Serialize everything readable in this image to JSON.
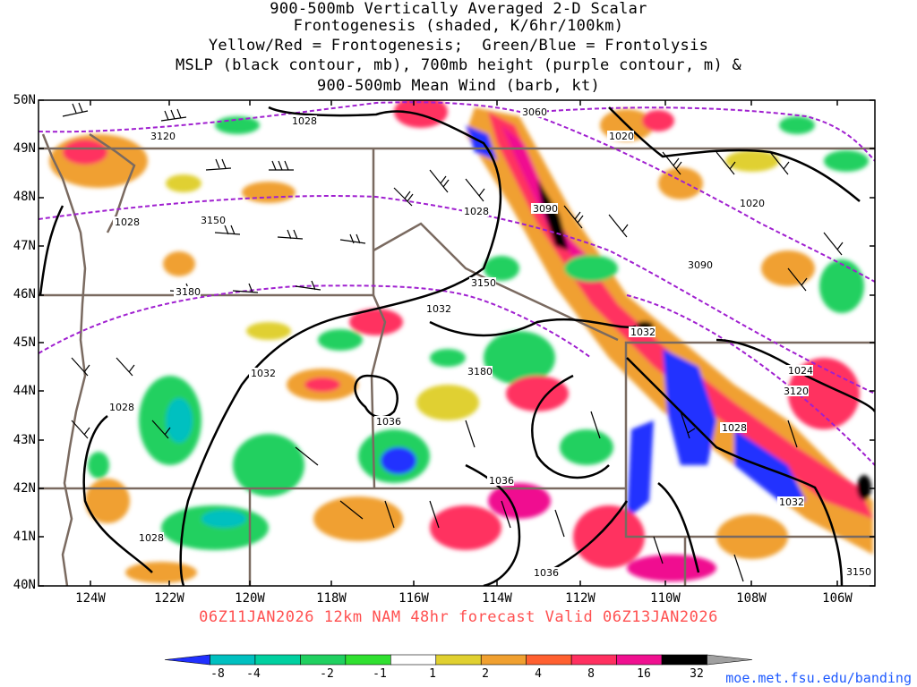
{
  "title_lines": [
    "900-500mb Vertically Averaged 2-D Scalar",
    "Frontogenesis (shaded, K/6hr/100km)",
    "Yellow/Red = Frontogenesis;  Green/Blue = Frontolysis",
    "MSLP (black contour, mb), 700mb height (purple contour, m) &",
    "900-500mb Mean Wind (barb, kt)"
  ],
  "latitudes": [
    "50N",
    "49N",
    "48N",
    "47N",
    "46N",
    "45N",
    "44N",
    "43N",
    "42N",
    "41N",
    "40N"
  ],
  "longitudes": [
    "124W",
    "122W",
    "120W",
    "118W",
    "116W",
    "114W",
    "112W",
    "110W",
    "108W",
    "106W"
  ],
  "subtitle": "06Z11JAN2026 12km NAM 48hr forecast Valid 06Z13JAN2026",
  "colorbar": {
    "labels": [
      "-8",
      "-4",
      "-2",
      "-1",
      "1",
      "2",
      "4",
      "8",
      "16",
      "32"
    ],
    "colors": [
      "#2030ff",
      "#00c0c0",
      "#00d0a0",
      "#20d060",
      "#30e030",
      "#ffffff",
      "#e0d030",
      "#f0a030",
      "#ff6030",
      "#ff3060",
      "#f01090",
      "#000000",
      "#a0a0a0"
    ]
  },
  "mslp_labels": [
    "1028",
    "1020",
    "1032",
    "1036",
    "1024"
  ],
  "height_labels": [
    "3060",
    "3090",
    "3120",
    "3150",
    "3180"
  ],
  "url": "moe.met.fsu.edu/banding"
}
